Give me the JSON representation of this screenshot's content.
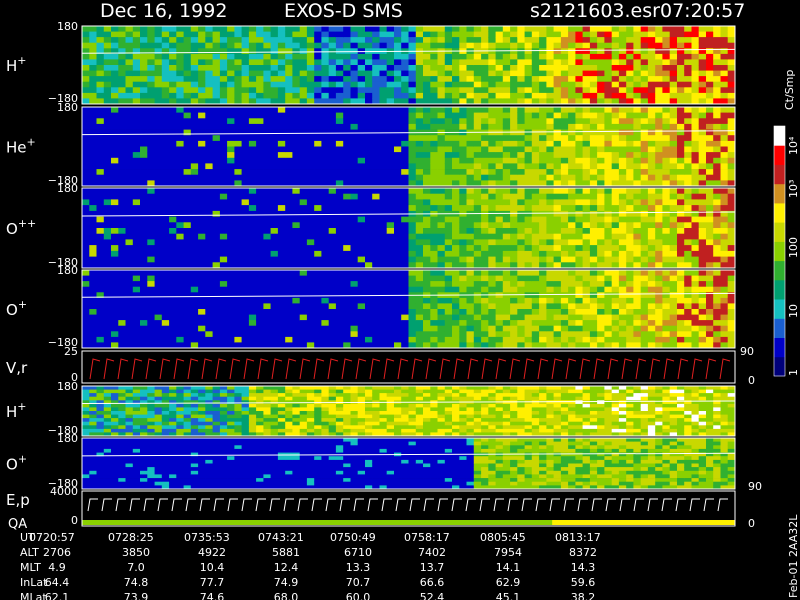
{
  "chart_data": {
    "type": "heatmap",
    "title": "Dec 16, 1992",
    "instrument": "EXOS-D SMS",
    "file": "s2121603.esr",
    "start_time": "07:20:57",
    "colorbar": {
      "unit": "Ct/Smp",
      "ticks": [
        "10⁴",
        "10³",
        "100",
        "10",
        "1"
      ]
    },
    "panels": [
      {
        "label": "H",
        "sup": "+",
        "ytop": "180",
        "ybot": "−180"
      },
      {
        "label": "He",
        "sup": "+",
        "ytop": "180",
        "ybot": "−180"
      },
      {
        "label": "O",
        "sup": "++",
        "ytop": "180",
        "ybot": "−180"
      },
      {
        "label": "O",
        "sup": "+",
        "ytop": "180",
        "ybot": "−180"
      },
      {
        "label": "V,r",
        "sup": "",
        "ytop": "25",
        "ybot": "0",
        "rtop": "90",
        "rbot": "0"
      },
      {
        "label": "H",
        "sup": "+",
        "ytop": "180",
        "ybot": "−180"
      },
      {
        "label": "O",
        "sup": "+",
        "ytop": "180",
        "ybot": "−180",
        "rbot": "90"
      },
      {
        "label": "E,p",
        "sup": "",
        "label2": "QA",
        "ytop": "4000",
        "ybot": "0",
        "rbot": "0"
      }
    ],
    "ephemeris": {
      "rows": [
        {
          "name": "UT",
          "values": [
            "0720:57",
            "0728:25",
            "0735:53",
            "0743:21",
            "0750:49",
            "0758:17",
            "0805:45",
            "0813:17"
          ]
        },
        {
          "name": "ALT",
          "values": [
            "2706",
            "3850",
            "4922",
            "5881",
            "6710",
            "7402",
            "7954",
            "8372"
          ]
        },
        {
          "name": "MLT",
          "values": [
            "4.9",
            "7.0",
            "10.4",
            "12.4",
            "13.3",
            "13.7",
            "14.1",
            "14.3"
          ]
        },
        {
          "name": "InLat",
          "values": [
            "64.4",
            "74.8",
            "77.7",
            "74.9",
            "70.7",
            "66.6",
            "62.9",
            "59.6"
          ]
        },
        {
          "name": "MLat",
          "values": [
            "62.1",
            "73.9",
            "74.6",
            "68.0",
            "60.0",
            "52.4",
            "45.1",
            "38.2"
          ]
        }
      ]
    },
    "footer_code": "Feb-01 2AA32L",
    "colors": {
      "bg": "#000000",
      "scale": [
        "#00007a",
        "#0000c8",
        "#1a5fd0",
        "#15c0c0",
        "#00a070",
        "#30b030",
        "#8ad000",
        "#c8d800",
        "#fff000",
        "#d09020",
        "#c02020",
        "#ff0000",
        "#ffffff"
      ]
    }
  }
}
